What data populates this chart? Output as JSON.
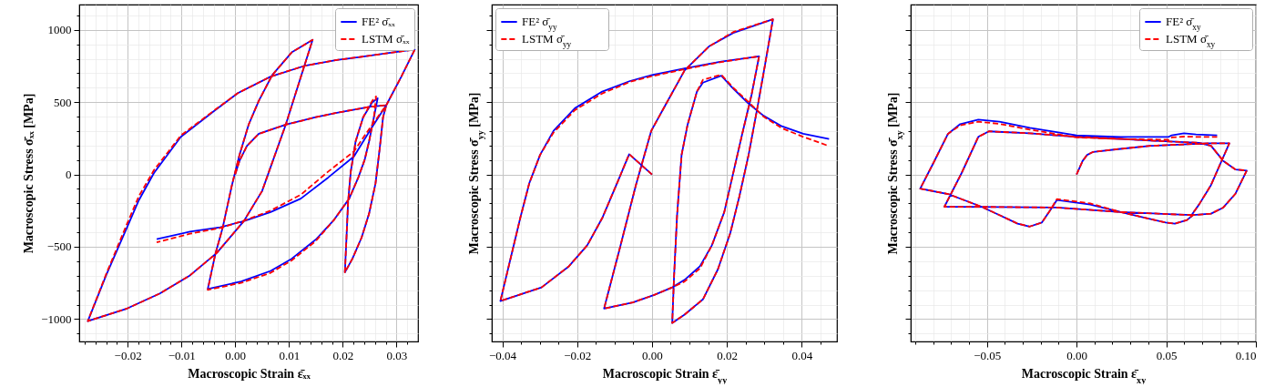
{
  "chart_data": [
    {
      "type": "line",
      "xlabel": "Macroscopic Strain ε̄ₓₓ",
      "ylabel": "Macroscopic Stress σ̄ₓₓ [MPa]",
      "grid": true,
      "legend": "top right",
      "xlim": [
        -0.029,
        0.034
      ],
      "ylim": [
        -1155,
        1175
      ],
      "xticks": [
        {
          "value": -0.028,
          "label": null
        },
        {
          "value": -0.026,
          "label": null
        },
        {
          "value": -0.024,
          "label": null
        },
        {
          "value": -0.022,
          "label": null
        },
        {
          "value": -0.02,
          "label": "−0.02"
        },
        {
          "value": -0.018,
          "label": null
        },
        {
          "value": -0.016,
          "label": null
        },
        {
          "value": -0.014,
          "label": null
        },
        {
          "value": -0.012,
          "label": null
        },
        {
          "value": -0.01,
          "label": "−0.01"
        },
        {
          "value": -0.008,
          "label": null
        },
        {
          "value": -0.006,
          "label": null
        },
        {
          "value": -0.004,
          "label": null
        },
        {
          "value": -0.002,
          "label": null
        },
        {
          "value": 0,
          "label": "0.00"
        },
        {
          "value": 0.002,
          "label": null
        },
        {
          "value": 0.004,
          "label": null
        },
        {
          "value": 0.006,
          "label": null
        },
        {
          "value": 0.008,
          "label": null
        },
        {
          "value": 0.01,
          "label": "0.01"
        },
        {
          "value": 0.012,
          "label": null
        },
        {
          "value": 0.014,
          "label": null
        },
        {
          "value": 0.016,
          "label": null
        },
        {
          "value": 0.018,
          "label": null
        },
        {
          "value": 0.02,
          "label": "0.02"
        },
        {
          "value": 0.022,
          "label": null
        },
        {
          "value": 0.024,
          "label": null
        },
        {
          "value": 0.026,
          "label": null
        },
        {
          "value": 0.028,
          "label": null
        },
        {
          "value": 0.03,
          "label": "0.03"
        },
        {
          "value": 0.032,
          "label": null
        }
      ],
      "yticks": [
        {
          "value": -1100,
          "label": null
        },
        {
          "value": -1000,
          "label": "−1000"
        },
        {
          "value": -900,
          "label": null
        },
        {
          "value": -800,
          "label": null
        },
        {
          "value": -700,
          "label": null
        },
        {
          "value": -600,
          "label": null
        },
        {
          "value": -500,
          "label": "−500"
        },
        {
          "value": -400,
          "label": null
        },
        {
          "value": -300,
          "label": null
        },
        {
          "value": -200,
          "label": null
        },
        {
          "value": -100,
          "label": null
        },
        0,
        {
          "value": 100,
          "label": null
        },
        {
          "value": 200,
          "label": null
        },
        {
          "value": 300,
          "label": null
        },
        {
          "value": 400,
          "label": null
        },
        500,
        {
          "value": 600,
          "label": null
        },
        {
          "value": 700,
          "label": null
        },
        {
          "value": 800,
          "label": null
        },
        {
          "value": 900,
          "label": null
        },
        1000,
        {
          "value": 1100,
          "label": null
        }
      ],
      "series": [
        {
          "name": "FE² σ̄ₓₓ",
          "color": "#0000ff",
          "line_style": "solid",
          "x": [
            0,
            0.0008,
            0.0022,
            0.0044,
            0.0094,
            0.015,
            0.0189,
            0.0252,
            0.0281,
            0.0275,
            0.0269,
            0.0261,
            0.0249,
            0.0235,
            0.0218,
            0.0204,
            0.0207,
            0.021,
            0.0215,
            0.0224,
            0.0238,
            0.0255,
            0.0265,
            0.0258,
            0.0249,
            0.0241,
            0.0229,
            0.0212,
            0.0184,
            0.015,
            0.0105,
            0.0066,
            0.0011,
            -0.0051,
            -0.0037,
            -0.0023,
            -0.0006,
            0.0008,
            0.0025,
            0.0044,
            0.0069,
            0.0105,
            0.0144,
            0.0133,
            0.0117,
            0.0094,
            0.0072,
            0.005,
            0.0016,
            -0.0034,
            -0.0084,
            -0.014,
            -0.0201,
            -0.0274,
            -0.024,
            -0.0201,
            -0.0179,
            -0.0151,
            -0.0101,
            -0.004,
            0.0005,
            0.0066,
            0.0128,
            0.0189,
            0.0229,
            0.0286,
            0.0334,
            0.0309,
            0.0281,
            0.0252,
            0.0221,
            0.0173,
            0.0122,
            0.0066,
            0.0016,
            -0.0028,
            -0.0084,
            -0.0146
          ],
          "values": [
            0,
            94,
            198,
            281,
            344,
            396,
            427,
            469,
            479,
            396,
            187,
            -62,
            -271,
            -437,
            -583,
            -677,
            -437,
            -187,
            21,
            229,
            396,
            500,
            527,
            396,
            229,
            104,
            -21,
            -167,
            -313,
            -450,
            -583,
            -667,
            -740,
            -792,
            -552,
            -365,
            -73,
            135,
            344,
            510,
            688,
            844,
            931,
            802,
            615,
            344,
            115,
            -115,
            -323,
            -542,
            -698,
            -823,
            -927,
            -1014,
            -698,
            -365,
            -177,
            10,
            260,
            437,
            563,
            677,
            750,
            792,
            811,
            840,
            864,
            677,
            479,
            312,
            125,
            -21,
            -167,
            -260,
            -323,
            -365,
            -396,
            -448
          ]
        },
        {
          "name": "LSTM σ̄ₓₓ",
          "color": "#ff0000",
          "line_style": "dashed",
          "x": [
            0,
            0.0008,
            0.0022,
            0.0044,
            0.0094,
            0.015,
            0.0189,
            0.0252,
            0.0281,
            0.0275,
            0.0269,
            0.0261,
            0.0249,
            0.0235,
            0.0218,
            0.0204,
            0.0207,
            0.021,
            0.0215,
            0.0224,
            0.0238,
            0.0255,
            0.0262,
            0.0258,
            0.0249,
            0.0241,
            0.0229,
            0.0212,
            0.0184,
            0.015,
            0.0105,
            0.0066,
            0.0011,
            -0.0051,
            -0.0037,
            -0.0023,
            -0.0006,
            0.0008,
            0.0025,
            0.0044,
            0.0069,
            0.0105,
            0.0144,
            0.0133,
            0.0117,
            0.0094,
            0.0072,
            0.005,
            0.0016,
            -0.0034,
            -0.0084,
            -0.014,
            -0.0201,
            -0.0274,
            -0.024,
            -0.0201,
            -0.0179,
            -0.0151,
            -0.0101,
            -0.004,
            0.0005,
            0.0066,
            0.0128,
            0.0189,
            0.0229,
            0.0286,
            0.0334,
            0.0309,
            0.0281,
            0.0252,
            0.0221,
            0.0173,
            0.0122,
            0.0066,
            0.0016,
            -0.0028,
            -0.0084,
            -0.0146
          ],
          "values": [
            0,
            94,
            198,
            281,
            344,
            396,
            427,
            469,
            479,
            396,
            187,
            -62,
            -271,
            -437,
            -583,
            -677,
            -437,
            -187,
            21,
            229,
            396,
            510,
            540,
            396,
            229,
            104,
            -21,
            -167,
            -313,
            -460,
            -595,
            -680,
            -750,
            -798,
            -552,
            -365,
            -73,
            135,
            344,
            510,
            688,
            844,
            931,
            802,
            615,
            344,
            115,
            -115,
            -323,
            -542,
            -698,
            -823,
            -927,
            -1014,
            -690,
            -340,
            -150,
            30,
            270,
            440,
            563,
            677,
            750,
            792,
            811,
            840,
            864,
            677,
            479,
            330,
            160,
            20,
            -140,
            -250,
            -320,
            -370,
            -410,
            -469
          ]
        }
      ]
    },
    {
      "type": "line",
      "xlabel": "Macroscopic Strain ε̄$_{yy}$",
      "ylabel": "Macroscopic Stress σ̄$_{yy}$ [MPa]",
      "grid": true,
      "legend": "top left",
      "tick_labels": "x",
      "xlim": [
        -0.0428,
        0.0494
      ],
      "ylim": [
        -1155,
        1175
      ],
      "xticks": [
        {
          "value": -0.04,
          "label": "−0.04"
        },
        {
          "value": -0.035,
          "label": null
        },
        {
          "value": -0.03,
          "label": null
        },
        {
          "value": -0.025,
          "label": null
        },
        {
          "value": -0.02,
          "label": "−0.02"
        },
        {
          "value": -0.015,
          "label": null
        },
        {
          "value": -0.01,
          "label": null
        },
        {
          "value": -0.005,
          "label": null
        },
        {
          "value": 0,
          "label": "0.00"
        },
        {
          "value": 0.005,
          "label": null
        },
        {
          "value": 0.01,
          "label": null
        },
        {
          "value": 0.015,
          "label": null
        },
        {
          "value": 0.02,
          "label": "0.02"
        },
        {
          "value": 0.025,
          "label": null
        },
        {
          "value": 0.03,
          "label": null
        },
        {
          "value": 0.035,
          "label": null
        },
        {
          "value": 0.04,
          "label": "0.04"
        },
        {
          "value": 0.045,
          "label": null
        }
      ],
      "yticks": [
        {
          "value": -1100,
          "label": null
        },
        -1000,
        {
          "value": -900,
          "label": null
        },
        {
          "value": -800,
          "label": null
        },
        {
          "value": -700,
          "label": null
        },
        {
          "value": -600,
          "label": null
        },
        -500,
        {
          "value": -400,
          "label": null
        },
        {
          "value": -300,
          "label": null
        },
        {
          "value": -200,
          "label": null
        },
        {
          "value": -100,
          "label": null
        },
        0,
        {
          "value": 100,
          "label": null
        },
        {
          "value": 200,
          "label": null
        },
        {
          "value": 300,
          "label": null
        },
        {
          "value": 400,
          "label": null
        },
        500,
        {
          "value": 600,
          "label": null
        },
        {
          "value": 700,
          "label": null
        },
        {
          "value": 800,
          "label": null
        },
        {
          "value": 900,
          "label": null
        },
        1000,
        {
          "value": 1100,
          "label": null
        }
      ],
      "series": [
        {
          "name": "FE² σ̄$_{yy}$",
          "color": "#0000ff",
          "line_style": "solid",
          "x": [
            0,
            -0.0061,
            -0.0092,
            -0.0133,
            -0.0173,
            -0.0222,
            -0.0295,
            -0.0405,
            -0.0352,
            -0.0328,
            -0.0299,
            -0.0263,
            -0.0206,
            -0.0133,
            -0.0059,
            0,
            0.0087,
            0.0185,
            0.0286,
            0.0266,
            0.0241,
            0.0217,
            0.0193,
            0.016,
            0.0128,
            0.0087,
            0.0054,
            0.0006,
            -0.0051,
            -0.0128,
            -0.0084,
            -0.0043,
            -0.0002,
            0.0038,
            0.0087,
            0.0152,
            0.0217,
            0.0323,
            0.0302,
            0.0282,
            0.0258,
            0.0233,
            0.0209,
            0.0176,
            0.0136,
            0.0087,
            0.0054,
            0.0059,
            0.0067,
            0.0079,
            0.0095,
            0.012,
            0.0136,
            0.0185,
            0.0217,
            0.0258,
            0.0298,
            0.0347,
            0.0404,
            0.0473
          ],
          "values": [
            0,
            140,
            -52,
            -302,
            -490,
            -635,
            -781,
            -875,
            -302,
            -62,
            135,
            302,
            458,
            573,
            646,
            687,
            733,
            781,
            817,
            552,
            281,
            10,
            -260,
            -490,
            -635,
            -729,
            -781,
            -833,
            -885,
            -927,
            -490,
            -73,
            302,
            490,
            719,
            885,
            979,
            1073,
            760,
            469,
            135,
            -156,
            -406,
            -656,
            -864,
            -969,
            -1027,
            -698,
            -281,
            135,
            344,
            573,
            635,
            683,
            594,
            490,
            406,
            333,
            281,
            246
          ]
        },
        {
          "name": "LSTM σ̄$_{yy}$",
          "color": "#ff0000",
          "line_style": "dashed",
          "x": [
            0,
            -0.0061,
            -0.0092,
            -0.0133,
            -0.0173,
            -0.0222,
            -0.0295,
            -0.0405,
            -0.0352,
            -0.0328,
            -0.0299,
            -0.0263,
            -0.0206,
            -0.0133,
            -0.0059,
            0,
            0.0087,
            0.0185,
            0.0286,
            0.0266,
            0.0241,
            0.0217,
            0.0193,
            0.016,
            0.0128,
            0.0087,
            0.0054,
            0.0006,
            -0.0051,
            -0.0128,
            -0.0084,
            -0.0043,
            -0.0002,
            0.0038,
            0.0087,
            0.0152,
            0.0217,
            0.0323,
            0.0302,
            0.0282,
            0.0258,
            0.0233,
            0.0209,
            0.0176,
            0.0136,
            0.0087,
            0.0054,
            0.0059,
            0.0067,
            0.0079,
            0.0095,
            0.012,
            0.0136,
            0.0185,
            0.0217,
            0.0258,
            0.0298,
            0.0347,
            0.0404,
            0.0473
          ],
          "values": [
            0,
            140,
            -52,
            -302,
            -490,
            -635,
            -781,
            -875,
            -302,
            -62,
            135,
            290,
            445,
            560,
            640,
            680,
            728,
            778,
            817,
            552,
            281,
            10,
            -260,
            -490,
            -650,
            -740,
            -781,
            -833,
            -885,
            -927,
            -490,
            -73,
            302,
            490,
            719,
            885,
            985,
            1073,
            760,
            469,
            135,
            -156,
            -406,
            -656,
            -864,
            -969,
            -1027,
            -698,
            -281,
            135,
            344,
            573,
            655,
            690,
            600,
            500,
            400,
            320,
            260,
            196
          ]
        }
      ]
    },
    {
      "type": "line",
      "xlabel": "Macroscopic Strain ε̄$_{xy}$",
      "ylabel": "Macroscopic Stress σ̄$_{xy}$ [MPa]",
      "grid": true,
      "legend": "top right",
      "tick_labels": "x",
      "xlim": [
        -0.0925,
        0.1
      ],
      "ylim": [
        -1155,
        1175
      ],
      "xticks": [
        {
          "value": -0.09,
          "label": null
        },
        {
          "value": -0.08,
          "label": null
        },
        {
          "value": -0.07,
          "label": null
        },
        {
          "value": -0.06,
          "label": null
        },
        {
          "value": -0.05,
          "label": "−0.05"
        },
        {
          "value": -0.04,
          "label": null
        },
        {
          "value": -0.03,
          "label": null
        },
        {
          "value": -0.02,
          "label": null
        },
        {
          "value": -0.01,
          "label": null
        },
        {
          "value": 0,
          "label": "0.00"
        },
        {
          "value": 0.01,
          "label": null
        },
        {
          "value": 0.02,
          "label": null
        },
        {
          "value": 0.03,
          "label": null
        },
        {
          "value": 0.04,
          "label": null
        },
        {
          "value": 0.05,
          "label": "0.05"
        },
        {
          "value": 0.06,
          "label": null
        },
        {
          "value": 0.07,
          "label": null
        },
        {
          "value": 0.08,
          "label": null
        },
        {
          "value": 0.09,
          "label": null
        },
        {
          "value": 0.1,
          "label": "0.10"
        }
      ],
      "yticks": [
        {
          "value": -1100,
          "label": null
        },
        -1000,
        {
          "value": -900,
          "label": null
        },
        {
          "value": -800,
          "label": null
        },
        {
          "value": -700,
          "label": null
        },
        {
          "value": -600,
          "label": null
        },
        -500,
        {
          "value": -400,
          "label": null
        },
        {
          "value": -300,
          "label": null
        },
        {
          "value": -200,
          "label": null
        },
        {
          "value": -100,
          "label": null
        },
        0,
        {
          "value": 100,
          "label": null
        },
        {
          "value": 200,
          "label": null
        },
        {
          "value": 300,
          "label": null
        },
        {
          "value": 400,
          "label": null
        },
        500,
        {
          "value": 600,
          "label": null
        },
        {
          "value": 700,
          "label": null
        },
        {
          "value": 800,
          "label": null
        },
        {
          "value": 900,
          "label": null
        },
        1000,
        {
          "value": 1100,
          "label": null
        }
      ],
      "series": [
        {
          "name": "FE² σ̄$_{xy}$",
          "color": "#0000ff",
          "line_style": "solid",
          "x": [
            0,
            0.0034,
            0.0059,
            0.0093,
            0.0245,
            0.0413,
            0.0734,
            0.0852,
            0.075,
            0.0683,
            0.0641,
            0.0245,
            -0.011,
            -0.043,
            -0.0737,
            -0.0641,
            -0.0548,
            -0.0489,
            -0.0261,
            0,
            0.0245,
            0.0497,
            0.0683,
            0.075,
            0.0818,
            0.0885,
            0.0949,
            0.0885,
            0.0818,
            0.075,
            0.0649,
            0.0616,
            0.0548,
            0.0497,
            0.0245,
            0.0076,
            -0.011,
            -0.0143,
            -0.0194,
            -0.0261,
            -0.0329,
            -0.043,
            -0.0531,
            -0.0717,
            -0.0872,
            -0.0801,
            -0.0717,
            -0.0649,
            -0.0548,
            -0.043,
            -0.0261,
            0,
            0.0245,
            0.0514,
            0.0531,
            0.0599,
            0.0666,
            0.0784
          ],
          "values": [
            0,
            94,
            135,
            156,
            177,
            198,
            215,
            215,
            -73,
            -208,
            -281,
            -260,
            -229,
            -225,
            -223,
            10,
            260,
            298,
            285,
            260,
            246,
            229,
            219,
            198,
            94,
            35,
            27,
            -135,
            -229,
            -271,
            -281,
            -315,
            -340,
            -333,
            -260,
            -208,
            -177,
            -240,
            -333,
            -360,
            -340,
            -281,
            -223,
            -135,
            -98,
            73,
            281,
            348,
            379,
            365,
            323,
            271,
            260,
            260,
            271,
            285,
            277,
            271
          ]
        },
        {
          "name": "LSTM σ̄$_{xy}$",
          "color": "#ff0000",
          "line_style": "dashed",
          "x": [
            0,
            0.0034,
            0.0059,
            0.0093,
            0.0245,
            0.0413,
            0.0734,
            0.0852,
            0.075,
            0.0683,
            0.0641,
            0.0245,
            -0.011,
            -0.043,
            -0.0737,
            -0.0641,
            -0.0548,
            -0.0489,
            -0.0261,
            0,
            0.0245,
            0.0497,
            0.0683,
            0.075,
            0.0818,
            0.0885,
            0.0949,
            0.0885,
            0.0818,
            0.075,
            0.0649,
            0.0616,
            0.0548,
            0.0497,
            0.0245,
            0.0076,
            -0.011,
            -0.0143,
            -0.0194,
            -0.0261,
            -0.0329,
            -0.043,
            -0.0531,
            -0.0717,
            -0.0872,
            -0.0801,
            -0.0717,
            -0.0649,
            -0.0548,
            -0.043,
            -0.0261,
            0,
            0.0245,
            0.0514,
            0.0531,
            0.0599,
            0.0666,
            0.0784
          ],
          "values": [
            0,
            94,
            135,
            156,
            177,
            198,
            215,
            215,
            -73,
            -208,
            -281,
            -260,
            -229,
            -225,
            -223,
            10,
            260,
            298,
            285,
            260,
            246,
            229,
            219,
            198,
            94,
            35,
            27,
            -135,
            -229,
            -271,
            -281,
            -315,
            -340,
            -333,
            -260,
            -200,
            -170,
            -240,
            -333,
            -360,
            -340,
            -281,
            -223,
            -135,
            -98,
            73,
            281,
            340,
            365,
            350,
            310,
            256,
            245,
            240,
            256,
            262,
            260,
            260
          ]
        }
      ]
    }
  ]
}
